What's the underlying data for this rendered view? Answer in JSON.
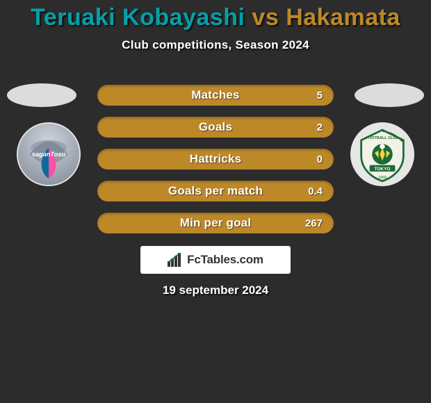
{
  "title": {
    "part1": "Teruaki Kobayashi",
    "vs": " vs ",
    "part2": "Hakamata"
  },
  "subtitle": "Club competitions, Season 2024",
  "colors": {
    "background": "#2c2c2c",
    "player1": "#04a0a8",
    "player2": "#bd8828",
    "oval": "#dcdcdc",
    "badge_bg": "#e6e6e6",
    "bar_text": "#ffffff",
    "logobox_bg": "#ffffff",
    "logo_text": "#333333"
  },
  "stats": [
    {
      "label": "Matches",
      "value": "5"
    },
    {
      "label": "Goals",
      "value": "2"
    },
    {
      "label": "Hattricks",
      "value": "0"
    },
    {
      "label": "Goals per match",
      "value": "0.4"
    },
    {
      "label": "Min per goal",
      "value": "267"
    }
  ],
  "logo_text": "FcTables.com",
  "date": "19 september 2024"
}
